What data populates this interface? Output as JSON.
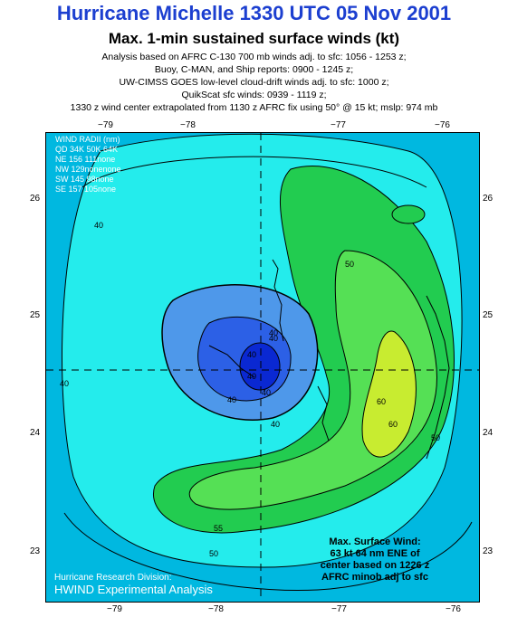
{
  "title": "Hurricane Michelle 1330 UTC 05 Nov 2001",
  "subtitle": "Max. 1-min sustained surface winds (kt)",
  "notes": [
    "Analysis based on AFRC C-130 700 mb winds adj. to sfc: 1056 - 1253 z;",
    "Buoy, C-MAN, and Ship reports: 0900 - 1245 z;",
    "UW-CIMSS GOES low-level cloud-drift winds adj. to sfc: 1000 z;",
    "QuikScat sfc winds: 0939 - 1119 z;",
    "1330 z wind center extrapolated from 1130 z AFRC fix using 50° @ 15 kt; mslp: 974 mb"
  ],
  "lon_ticks": [
    "−79",
    "−78",
    "−77",
    "−76"
  ],
  "lat_ticks": [
    "26",
    "25",
    "24",
    "23"
  ],
  "wind_radii": {
    "title": "WIND RADII (nm)",
    "header": "QD  34K  50K  64K",
    "rows": [
      "NE 156  111none",
      "NW 129nonenone",
      "SW 145   98none",
      "SE 157  105none"
    ]
  },
  "contour_labels": [
    "40",
    "50",
    "60",
    "40",
    "40",
    "50",
    "55",
    "50",
    "60",
    "40",
    "40",
    "40",
    "40",
    "40",
    "40"
  ],
  "max_wind": [
    "Max. Surface Wind:",
    "63 kt 64 nm ENE of",
    "center based on  1226 z",
    "AFRC minob adj to sfc"
  ],
  "credit": [
    "Hurricane Research Division:",
    "HWIND Experimental Analysis"
  ],
  "colors": {
    "title": "#1c3fd0",
    "wind_30": "#00b8e0",
    "wind_40": "#24ecec",
    "wind_50": "#22cc50",
    "wind_55": "#55e055",
    "wind_60": "#c8ec30",
    "core_low": "#4e98ea",
    "core_mid": "#2c60e6",
    "core_high": "#0a28d2"
  }
}
